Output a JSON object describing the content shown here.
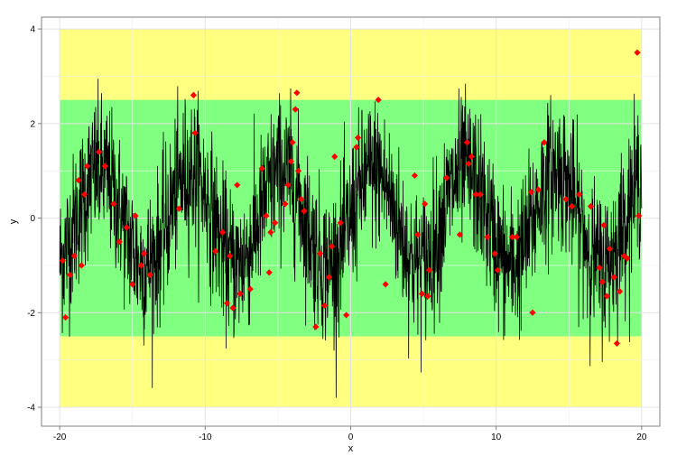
{
  "chart_data": {
    "type": "line",
    "xlabel": "x",
    "ylabel": "y",
    "xlim": [
      -21.25,
      21.25
    ],
    "ylim": [
      -4.4,
      4.25
    ],
    "x_ticks": [
      -20,
      -10,
      0,
      10,
      20
    ],
    "x_tick_labels": [
      "-20",
      "-10",
      "0",
      "10",
      "20"
    ],
    "y_ticks": [
      -4,
      -2,
      0,
      2,
      4
    ],
    "y_tick_labels": [
      "-4",
      "-2",
      "0",
      "2",
      "4"
    ],
    "grid": true,
    "legend": "none",
    "bands": [
      {
        "x_range": [
          -20,
          20
        ],
        "y_range": [
          -4,
          4
        ],
        "color": "#ffff80"
      },
      {
        "x_range": [
          -20,
          20
        ],
        "y_range": [
          -2.5,
          2.5
        ],
        "color": "#80ff80"
      }
    ],
    "line_series": {
      "x_range": [
        -20,
        20
      ],
      "color": "#000000",
      "trend": "sin(x) with noise spikes, mostly between -3.5 and 3.9"
    },
    "points": {
      "color": "#ff0000",
      "x": [
        -19.8,
        -19.6,
        -19.3,
        -19.0,
        -18.7,
        -18.5,
        -18.3,
        -18.1,
        -17.3,
        -16.9,
        -16.3,
        -15.9,
        -15.4,
        -15.0,
        -14.8,
        -14.4,
        -14.2,
        -13.8,
        -11.8,
        -10.8,
        -10.7,
        -9.3,
        -8.8,
        -8.5,
        -8.3,
        -8.1,
        -7.8,
        -7.6,
        -6.9,
        -6.1,
        -5.8,
        -5.6,
        -5.5,
        -5.2,
        -4.5,
        -4.3,
        -4.1,
        -4.0,
        -3.8,
        -3.7,
        -3.6,
        -3.4,
        -3.2,
        -2.4,
        -2.1,
        -1.8,
        -1.5,
        -1.3,
        -1.1,
        -0.7,
        -0.3,
        0.4,
        0.5,
        1.9,
        2.4,
        4.4,
        4.6,
        4.9,
        5.1,
        5.3,
        5.4,
        6.6,
        7.5,
        8.0,
        8.1,
        8.3,
        8.6,
        8.9,
        9.4,
        9.9,
        10.1,
        11.1,
        11.4,
        12.4,
        12.5,
        12.9,
        13.3,
        14.8,
        15.2,
        15.7,
        16.5,
        17.1,
        17.3,
        17.4,
        17.6,
        17.8,
        18.1,
        18.3,
        18.5,
        18.8,
        19.0,
        19.7,
        19.8
      ],
      "y": [
        -0.9,
        -2.1,
        -1.2,
        -0.8,
        0.8,
        -1.0,
        0.5,
        1.1,
        1.4,
        1.1,
        0.3,
        -0.5,
        -0.2,
        -1.4,
        0.05,
        -1.0,
        -0.75,
        -1.2,
        0.2,
        2.6,
        1.8,
        -0.7,
        -0.3,
        -1.8,
        -0.8,
        -1.9,
        0.7,
        -1.6,
        -1.5,
        1.05,
        0.05,
        -1.15,
        -0.3,
        -0.1,
        0.3,
        0.7,
        1.2,
        1.6,
        2.3,
        2.65,
        1.0,
        0.4,
        0.15,
        -2.3,
        -0.75,
        -1.85,
        -1.25,
        -0.6,
        1.3,
        -0.1,
        -2.05,
        1.5,
        1.7,
        2.5,
        -1.4,
        0.9,
        -0.35,
        -1.6,
        0.3,
        -1.65,
        -1.1,
        0.85,
        -0.35,
        1.6,
        1.15,
        1.3,
        0.5,
        0.5,
        -0.4,
        -0.75,
        -1.1,
        -0.4,
        -0.4,
        0.55,
        -2.0,
        0.6,
        1.6,
        0.4,
        0.25,
        0.5,
        0.25,
        -1.05,
        -1.35,
        -0.15,
        -1.65,
        -0.65,
        -1.25,
        -2.65,
        -1.55,
        -0.8,
        -0.85,
        3.5,
        0.05
      ]
    }
  }
}
